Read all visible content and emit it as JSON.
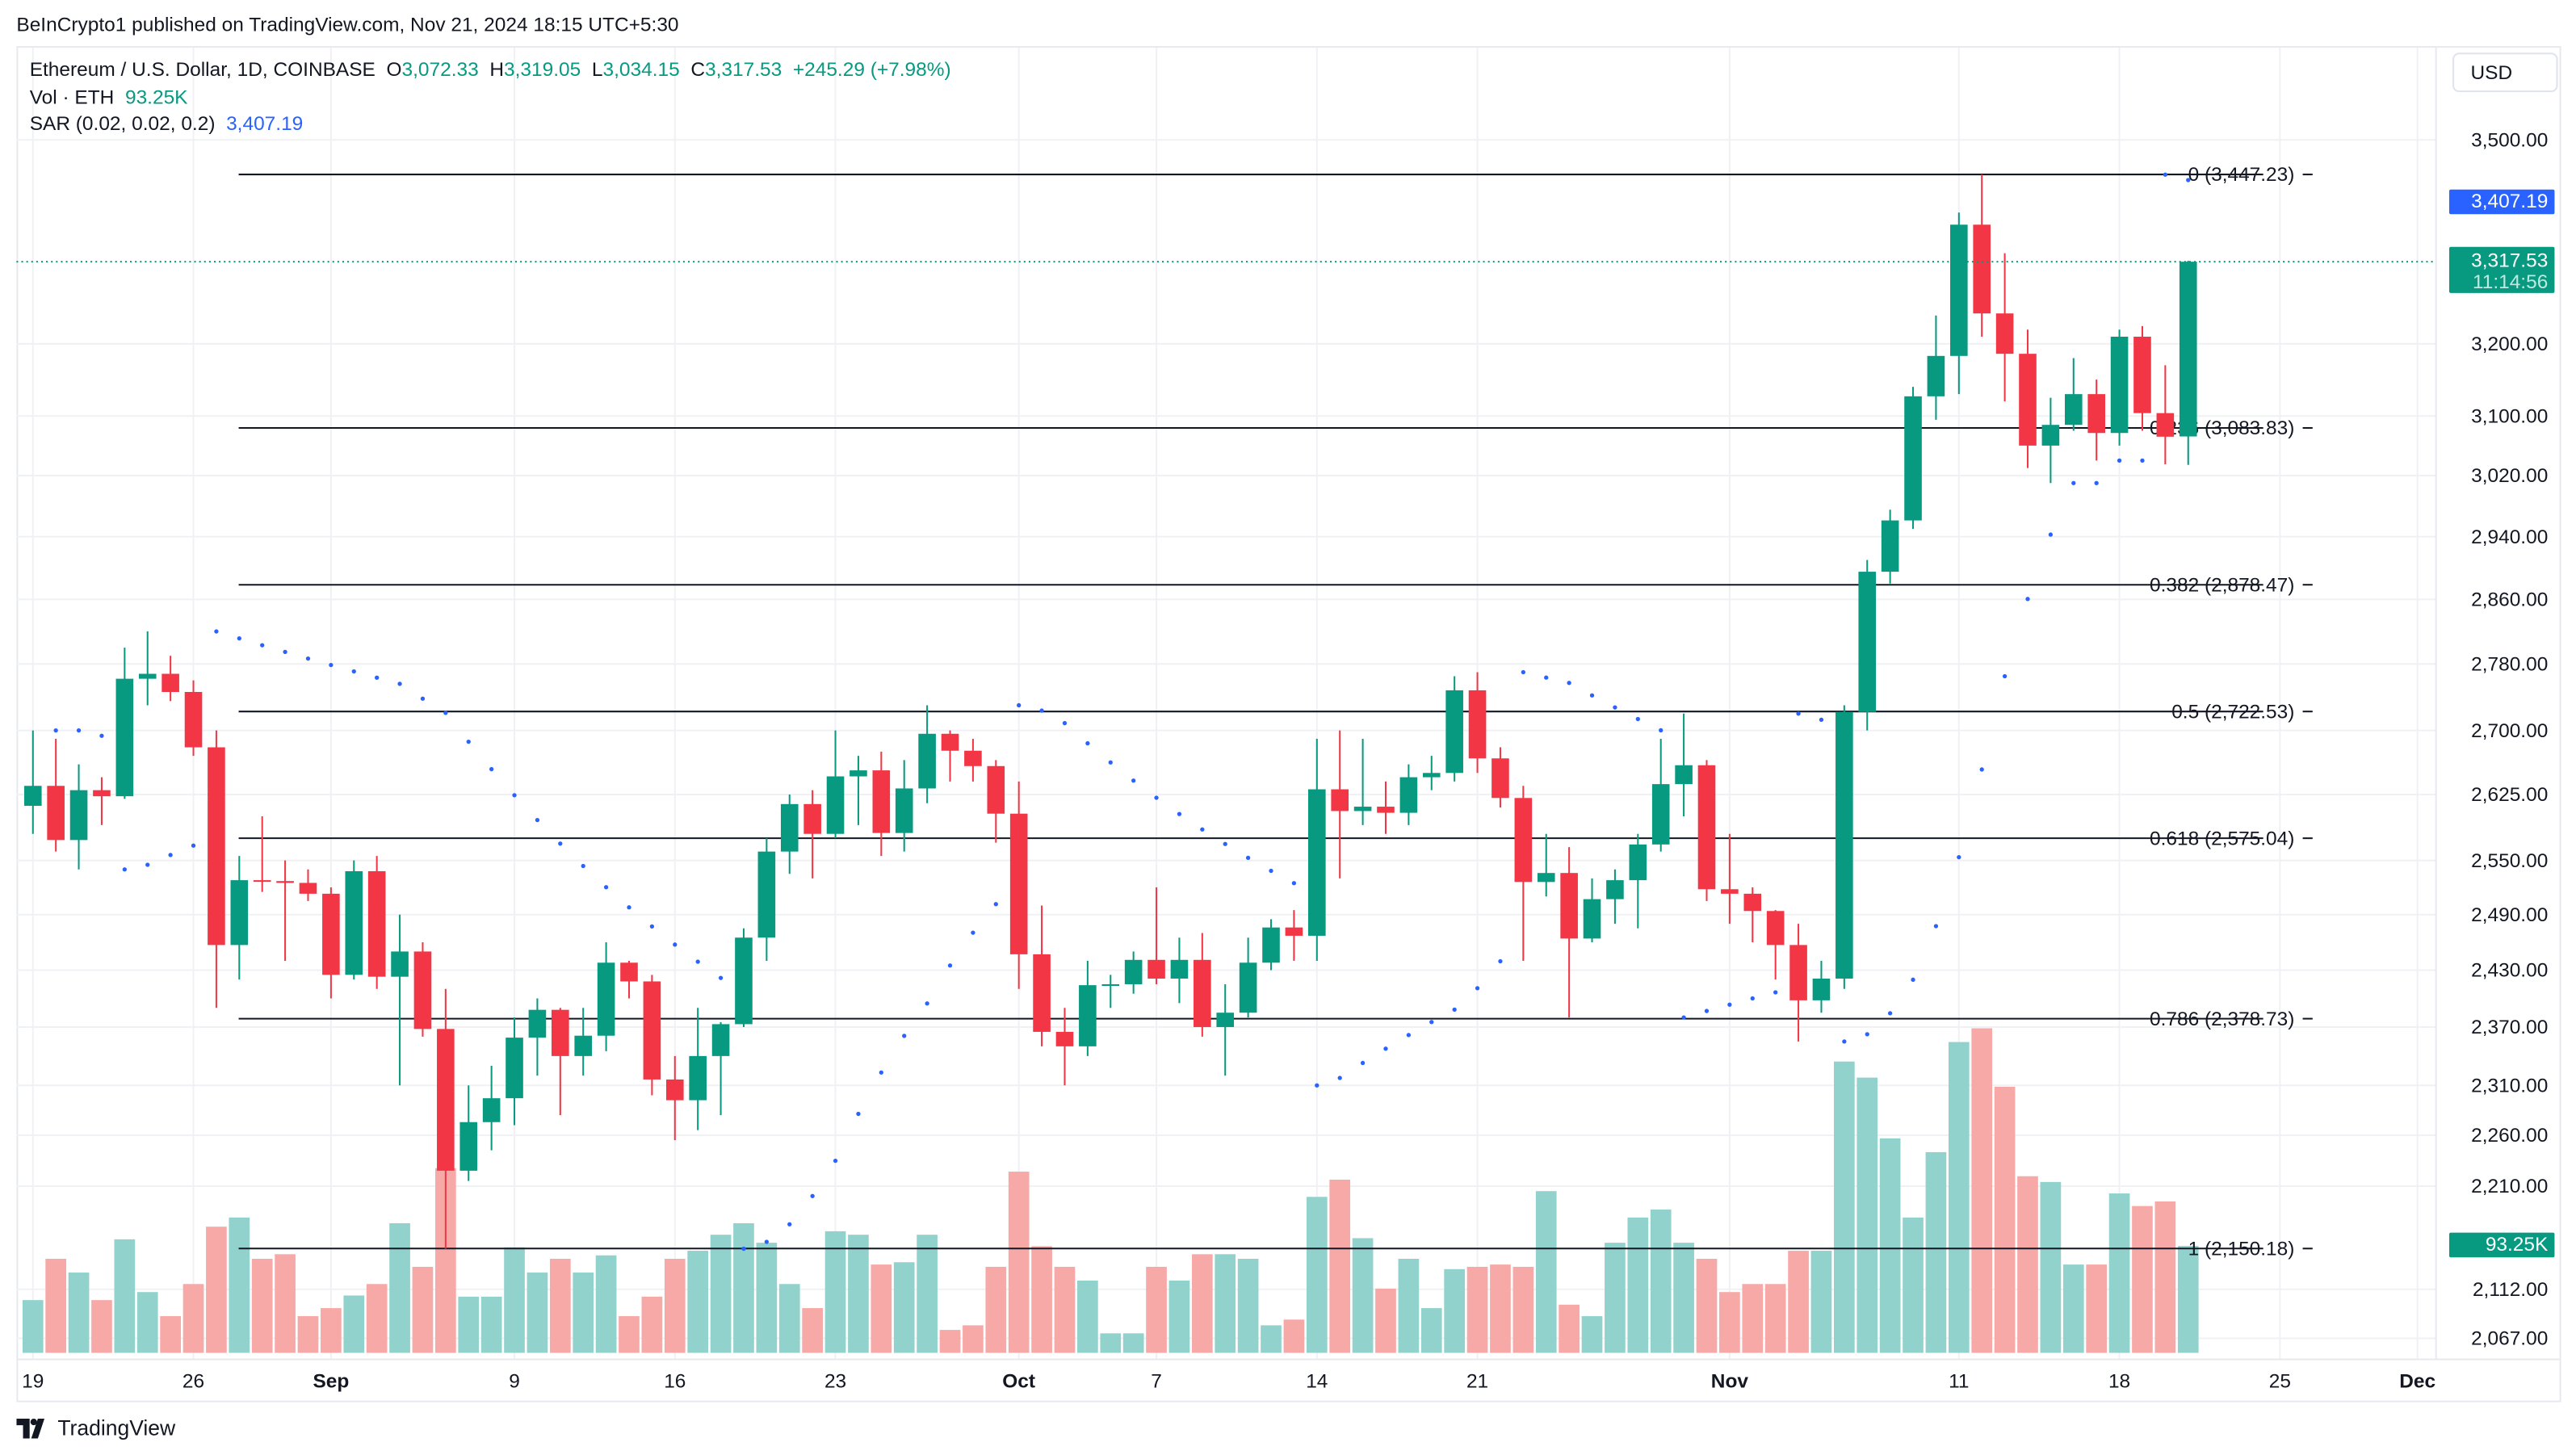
{
  "publish_line": "BeInCrypto1 published on TradingView.com, Nov 21, 2024 18:15 UTC+5:30",
  "legend": {
    "symbol": "Ethereum / U.S. Dollar, 1D, COINBASE",
    "o_label": "O",
    "o": "3,072.33",
    "h_label": "H",
    "h": "3,319.05",
    "l_label": "L",
    "l": "3,034.15",
    "c_label": "C",
    "c": "3,317.53",
    "change": "+245.29 (+7.98%)",
    "vol_label": "Vol · ETH",
    "vol": "93.25K",
    "sar_label": "SAR (0.02, 0.02, 0.2)",
    "sar": "3,407.19"
  },
  "currency": "USD",
  "brand": "TradingView",
  "colors": {
    "up": "#089981",
    "down": "#f23645",
    "vol_up": "#92d2cc",
    "vol_down": "#f7a9a7",
    "sar": "#2962ff"
  },
  "chart_data": {
    "type": "candlestick",
    "title": "Ethereum / U.S. Dollar, 1D, COINBASE",
    "y_scale": "log",
    "ylim": [
      2040,
      3560
    ],
    "y_ticks": [
      3500,
      3200,
      3100,
      3020,
      2940,
      2860,
      2780,
      2700,
      2625,
      2550,
      2490,
      2430,
      2370,
      2310,
      2260,
      2210,
      2112,
      2067
    ],
    "y_tick_labels": [
      "3,500.00",
      "3,200.00",
      "3,100.00",
      "3,020.00",
      "2,940.00",
      "2,860.00",
      "2,780.00",
      "2,700.00",
      "2,625.00",
      "2,550.00",
      "2,490.00",
      "2,430.00",
      "2,370.00",
      "2,310.00",
      "2,260.00",
      "2,210.00",
      "2,112.00",
      "2,067.00"
    ],
    "x_ticks": [
      {
        "day": 0,
        "label": "19"
      },
      {
        "day": 7,
        "label": "26"
      },
      {
        "day": 13,
        "label": "Sep"
      },
      {
        "day": 21,
        "label": "9"
      },
      {
        "day": 28,
        "label": "16"
      },
      {
        "day": 35,
        "label": "23"
      },
      {
        "day": 43,
        "label": "Oct"
      },
      {
        "day": 49,
        "label": "7"
      },
      {
        "day": 56,
        "label": "14"
      },
      {
        "day": 63,
        "label": "21"
      },
      {
        "day": 74,
        "label": "Nov"
      },
      {
        "day": 84,
        "label": "11"
      },
      {
        "day": 91,
        "label": "18"
      },
      {
        "day": 98,
        "label": "25"
      },
      {
        "day": 104,
        "label": "Dec"
      }
    ],
    "start_date": "2024-08-19",
    "ohlc": [
      [
        2612,
        2700,
        2580,
        2635
      ],
      [
        2635,
        2690,
        2560,
        2573
      ],
      [
        2573,
        2660,
        2540,
        2630
      ],
      [
        2630,
        2645,
        2590,
        2623
      ],
      [
        2623,
        2800,
        2620,
        2762
      ],
      [
        2762,
        2820,
        2730,
        2768
      ],
      [
        2768,
        2790,
        2735,
        2746
      ],
      [
        2746,
        2760,
        2670,
        2680
      ],
      [
        2680,
        2700,
        2390,
        2457
      ],
      [
        2457,
        2555,
        2420,
        2528
      ],
      [
        2528,
        2600,
        2515,
        2527
      ],
      [
        2527,
        2550,
        2440,
        2525
      ],
      [
        2525,
        2540,
        2505,
        2513
      ],
      [
        2513,
        2520,
        2400,
        2425
      ],
      [
        2425,
        2550,
        2420,
        2538
      ],
      [
        2538,
        2555,
        2410,
        2423
      ],
      [
        2423,
        2490,
        2310,
        2450
      ],
      [
        2450,
        2460,
        2360,
        2368
      ],
      [
        2368,
        2410,
        2150,
        2225
      ],
      [
        2225,
        2310,
        2215,
        2273
      ],
      [
        2273,
        2330,
        2245,
        2297
      ],
      [
        2297,
        2380,
        2270,
        2359
      ],
      [
        2359,
        2400,
        2320,
        2388
      ],
      [
        2388,
        2390,
        2280,
        2340
      ],
      [
        2340,
        2390,
        2320,
        2361
      ],
      [
        2361,
        2460,
        2345,
        2438
      ],
      [
        2438,
        2440,
        2400,
        2418
      ],
      [
        2418,
        2425,
        2300,
        2316
      ],
      [
        2316,
        2340,
        2255,
        2295
      ],
      [
        2295,
        2390,
        2265,
        2340
      ],
      [
        2340,
        2375,
        2280,
        2373
      ],
      [
        2373,
        2475,
        2370,
        2465
      ],
      [
        2465,
        2575,
        2440,
        2560
      ],
      [
        2560,
        2625,
        2535,
        2614
      ],
      [
        2614,
        2630,
        2530,
        2580
      ],
      [
        2580,
        2700,
        2575,
        2646
      ],
      [
        2646,
        2670,
        2590,
        2653
      ],
      [
        2653,
        2675,
        2555,
        2581
      ],
      [
        2581,
        2665,
        2560,
        2632
      ],
      [
        2632,
        2730,
        2615,
        2696
      ],
      [
        2696,
        2700,
        2640,
        2676
      ],
      [
        2676,
        2690,
        2640,
        2658
      ],
      [
        2658,
        2665,
        2570,
        2603
      ],
      [
        2603,
        2640,
        2410,
        2447
      ],
      [
        2447,
        2500,
        2350,
        2365
      ],
      [
        2365,
        2390,
        2310,
        2350
      ],
      [
        2350,
        2440,
        2340,
        2414
      ],
      [
        2414,
        2425,
        2390,
        2415
      ],
      [
        2415,
        2450,
        2405,
        2441
      ],
      [
        2441,
        2520,
        2415,
        2421
      ],
      [
        2421,
        2465,
        2395,
        2441
      ],
      [
        2441,
        2470,
        2360,
        2370
      ],
      [
        2370,
        2415,
        2320,
        2385
      ],
      [
        2385,
        2465,
        2380,
        2438
      ],
      [
        2438,
        2485,
        2430,
        2476
      ],
      [
        2476,
        2495,
        2440,
        2467
      ],
      [
        2467,
        2690,
        2440,
        2631
      ],
      [
        2631,
        2700,
        2530,
        2606
      ],
      [
        2606,
        2690,
        2590,
        2611
      ],
      [
        2611,
        2640,
        2580,
        2604
      ],
      [
        2604,
        2660,
        2590,
        2645
      ],
      [
        2645,
        2670,
        2630,
        2650
      ],
      [
        2650,
        2765,
        2640,
        2748
      ],
      [
        2748,
        2770,
        2650,
        2667
      ],
      [
        2667,
        2680,
        2610,
        2621
      ],
      [
        2621,
        2635,
        2440,
        2526
      ],
      [
        2526,
        2580,
        2510,
        2536
      ],
      [
        2536,
        2565,
        2380,
        2464
      ],
      [
        2464,
        2530,
        2460,
        2507
      ],
      [
        2507,
        2540,
        2480,
        2528
      ],
      [
        2528,
        2580,
        2475,
        2568
      ],
      [
        2568,
        2690,
        2560,
        2637
      ],
      [
        2637,
        2720,
        2600,
        2659
      ],
      [
        2659,
        2665,
        2505,
        2518
      ],
      [
        2518,
        2580,
        2480,
        2513
      ],
      [
        2513,
        2520,
        2460,
        2494
      ],
      [
        2494,
        2495,
        2420,
        2457
      ],
      [
        2457,
        2480,
        2355,
        2398
      ],
      [
        2398,
        2440,
        2385,
        2421
      ],
      [
        2421,
        2730,
        2410,
        2722
      ],
      [
        2722,
        2910,
        2700,
        2895
      ],
      [
        2895,
        2975,
        2880,
        2961
      ],
      [
        2961,
        3140,
        2950,
        3127
      ],
      [
        3127,
        3240,
        3095,
        3183
      ],
      [
        3183,
        3390,
        3130,
        3372
      ],
      [
        3372,
        3447,
        3210,
        3243
      ],
      [
        3243,
        3330,
        3120,
        3186
      ],
      [
        3186,
        3220,
        3030,
        3060
      ],
      [
        3060,
        3125,
        3010,
        3088
      ],
      [
        3088,
        3180,
        3080,
        3130
      ],
      [
        3130,
        3150,
        3040,
        3077
      ],
      [
        3077,
        3220,
        3060,
        3210
      ],
      [
        3210,
        3225,
        3080,
        3104
      ],
      [
        3104,
        3170,
        3035,
        3072
      ],
      [
        3072.33,
        3319.05,
        3034.15,
        3317.53
      ]
    ],
    "volume_k": [
      46,
      82,
      70,
      46,
      99,
      53,
      32,
      60,
      110,
      118,
      82,
      86,
      32,
      39,
      50,
      60,
      113,
      75,
      161,
      49,
      49,
      92,
      70,
      82,
      70,
      85,
      32,
      49,
      82,
      89,
      103,
      113,
      96,
      60,
      39,
      106,
      103,
      77,
      79,
      103,
      20,
      24,
      75,
      158,
      93,
      75,
      63,
      17,
      17,
      75,
      63,
      86,
      86,
      82,
      24,
      29,
      136,
      151,
      100,
      56,
      82,
      39,
      73,
      75,
      77,
      75,
      141,
      42,
      32,
      96,
      118,
      125,
      96,
      82,
      53,
      60,
      60,
      89,
      89,
      254,
      240,
      187,
      118,
      175,
      271,
      283,
      232,
      154,
      149,
      77,
      77,
      139,
      128,
      132,
      93.25
    ],
    "sar_params": [
      0.02,
      0.02,
      0.2
    ],
    "fib_levels": [
      {
        "ratio": "0",
        "price": 3447.23,
        "label": "0 (3,447.23)"
      },
      {
        "ratio": "0.236",
        "price": 3083.83,
        "label": "0.236 (3,083.83)"
      },
      {
        "ratio": "0.382",
        "price": 2878.47,
        "label": "0.382 (2,878.47)"
      },
      {
        "ratio": "0.5",
        "price": 2722.53,
        "label": "0.5 (2,722.53)"
      },
      {
        "ratio": "0.618",
        "price": 2575.04,
        "label": "0.618 (2,575.04)"
      },
      {
        "ratio": "0.786",
        "price": 2378.73,
        "label": "0.786 (2,378.73)"
      },
      {
        "ratio": "1",
        "price": 2150.18,
        "label": "1 (2,150.18)"
      }
    ],
    "price_tags": {
      "sar": {
        "value": 3407.19,
        "label": "3,407.19"
      },
      "last": {
        "value": 3317.53,
        "label": "3,317.53",
        "countdown": "11:14:56"
      },
      "volume": {
        "label": "93.25K"
      }
    }
  }
}
